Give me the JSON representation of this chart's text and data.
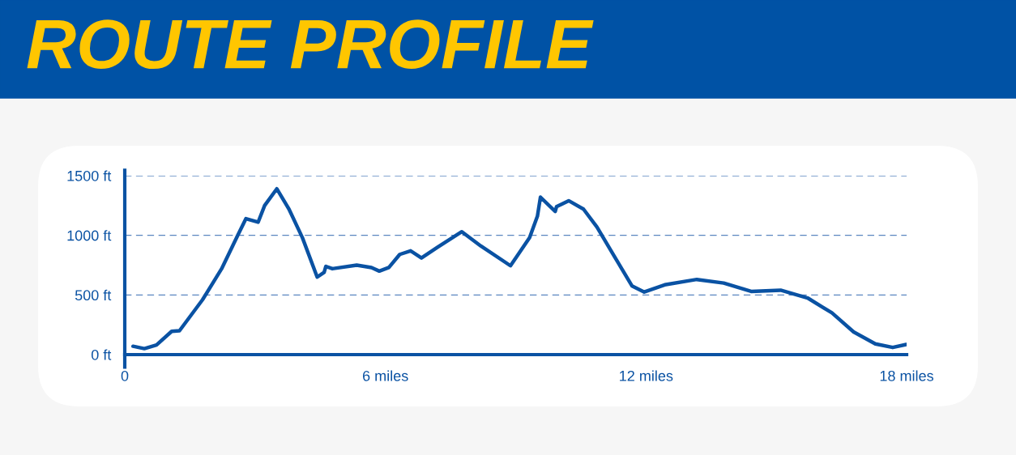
{
  "chart_data": {
    "type": "line",
    "title": "ROUTE PROFILE",
    "x": [
      0.19,
      0.45,
      0.73,
      1.08,
      1.26,
      1.79,
      2.23,
      2.6,
      2.79,
      3.07,
      3.22,
      3.5,
      3.78,
      4.09,
      4.43,
      4.59,
      4.63,
      4.78,
      5.34,
      5.68,
      5.86,
      6.08,
      6.33,
      6.58,
      6.83,
      7.2,
      7.76,
      8.2,
      8.88,
      9.32,
      9.5,
      9.57,
      9.91,
      9.94,
      10.22,
      10.56,
      10.87,
      11.31,
      11.68,
      11.96,
      12.43,
      13.17,
      13.79,
      14.42,
      15.1,
      15.72,
      16.28,
      16.78,
      17.28,
      17.68,
      17.99
    ],
    "series": [
      {
        "color": "#0a52a3",
        "values": [
          70,
          50,
          80,
          195,
          200,
          460,
          720,
          1000,
          1140,
          1110,
          1250,
          1390,
          1220,
          980,
          650,
          690,
          740,
          720,
          750,
          730,
          700,
          730,
          840,
          870,
          810,
          900,
          1030,
          910,
          745,
          980,
          1160,
          1320,
          1200,
          1240,
          1290,
          1220,
          1070,
          800,
          575,
          525,
          585,
          630,
          600,
          530,
          540,
          475,
          350,
          190,
          90,
          60,
          85
        ]
      }
    ],
    "xlim": [
      0,
      18
    ],
    "ylim": [
      0,
      1500
    ],
    "xticks": [
      0,
      {
        "value": 6,
        "label": "6 miles"
      },
      {
        "value": 12,
        "label": "12 miles"
      },
      {
        "value": 18,
        "label": "18 miles"
      }
    ],
    "yticks": [
      {
        "value": 0,
        "label": "0 ft"
      },
      {
        "value": 500,
        "label": "500 ft"
      },
      {
        "value": 1000,
        "label": "1000 ft"
      },
      {
        "value": 1500,
        "label": "1500 ft"
      }
    ],
    "grid": "y",
    "line_style": "solid",
    "marker": "none",
    "legend": false
  }
}
